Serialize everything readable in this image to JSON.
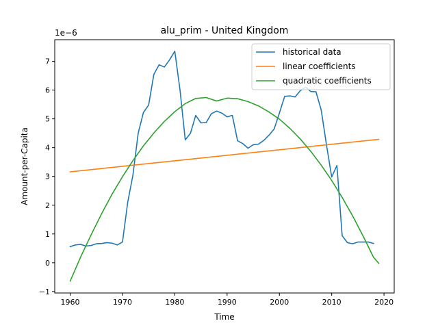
{
  "chart_data": {
    "type": "line",
    "title": "alu_prim - United Kingdom",
    "xlabel": "Time",
    "ylabel": "Amount-per-Capita",
    "y_offset_label": "1e−6",
    "xlim": [
      1957.05,
      2021.95
    ],
    "ylim": [
      -1.05,
      7.75
    ],
    "x_ticks": [
      1960,
      1970,
      1980,
      1990,
      2000,
      2010,
      2020
    ],
    "y_ticks": [
      -1,
      0,
      1,
      2,
      3,
      4,
      5,
      6,
      7
    ],
    "grid": false,
    "legend_position": "upper right",
    "series": [
      {
        "name": "historical data",
        "color": "#1f77b4",
        "x": [
          1960,
          1961,
          1962,
          1963,
          1964,
          1965,
          1966,
          1967,
          1968,
          1969,
          1970,
          1971,
          1972,
          1973,
          1974,
          1975,
          1976,
          1977,
          1978,
          1979,
          1980,
          1981,
          1982,
          1983,
          1984,
          1985,
          1986,
          1987,
          1988,
          1989,
          1990,
          1991,
          1992,
          1993,
          1994,
          1995,
          1996,
          1997,
          1998,
          1999,
          2000,
          2001,
          2002,
          2003,
          2004,
          2005,
          2006,
          2007,
          2008,
          2009,
          2010,
          2011,
          2012,
          2013,
          2014,
          2015,
          2016,
          2017,
          2018
        ],
        "y": [
          0.56,
          0.62,
          0.64,
          0.58,
          0.6,
          0.66,
          0.67,
          0.7,
          0.68,
          0.62,
          0.72,
          2.1,
          3.05,
          4.5,
          5.22,
          5.48,
          6.55,
          6.88,
          6.8,
          7.05,
          7.35,
          6.0,
          4.27,
          4.5,
          5.12,
          4.86,
          4.87,
          5.18,
          5.27,
          5.2,
          5.07,
          5.12,
          4.24,
          4.14,
          3.98,
          4.1,
          4.12,
          4.25,
          4.43,
          4.65,
          5.2,
          5.78,
          5.8,
          5.76,
          5.98,
          6.1,
          5.95,
          5.94,
          5.3,
          4.1,
          2.98,
          3.38,
          0.94,
          0.7,
          0.66,
          0.72,
          0.72,
          0.72,
          0.67
        ]
      },
      {
        "name": "linear coefficients",
        "color": "#ff7f0e",
        "x": [
          1960,
          2019
        ],
        "y": [
          3.16,
          4.29
        ]
      },
      {
        "name": "quadratic coefficients",
        "color": "#2ca02c",
        "x": [
          1960,
          1962,
          1964,
          1966,
          1968,
          1970,
          1972,
          1974,
          1976,
          1978,
          1980,
          1982,
          1984,
          1986,
          1988,
          1990,
          1992,
          1994,
          1996,
          1998,
          2000,
          2002,
          2004,
          2006,
          2008,
          2010,
          2012,
          2014,
          2016,
          2018,
          2019
        ],
        "y": [
          -0.64,
          0.2,
          0.97,
          1.7,
          2.38,
          2.99,
          3.55,
          4.06,
          4.51,
          4.91,
          5.25,
          5.53,
          5.71,
          5.74,
          5.62,
          5.72,
          5.7,
          5.6,
          5.45,
          5.24,
          4.99,
          4.67,
          4.3,
          3.87,
          3.39,
          2.86,
          2.27,
          1.63,
          0.93,
          0.19,
          -0.02
        ]
      }
    ]
  }
}
